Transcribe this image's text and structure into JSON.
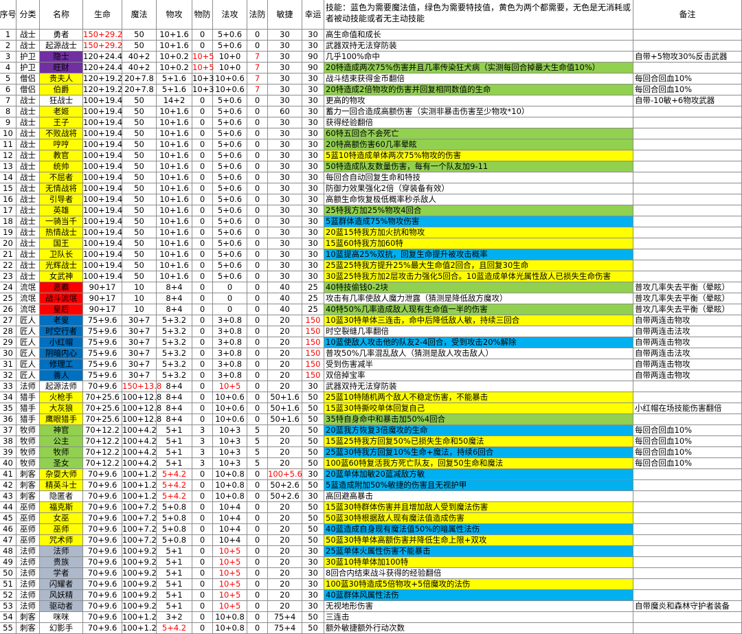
{
  "header": {
    "columns": [
      "序号",
      "分类",
      "名称",
      "生命",
      "魔法",
      "物攻",
      "物防",
      "法攻",
      "法防",
      "敏捷",
      "幸运",
      "技能：蓝色为需要魔法值，绿色为需要特技值，黄色为两个都需要，无色是无消耗或者被动技能或者无主动技能",
      "备注"
    ]
  },
  "table": {
    "rows": [
      {
        "cells": [
          "1",
          "战士",
          "勇者",
          "150+29.2",
          "50",
          "10+1.6",
          "0",
          "5+0.6",
          "0",
          "30",
          "30"
        ],
        "skill": "高生命值和成长",
        "red": [
          3
        ]
      },
      {
        "cells": [
          "2",
          "战士",
          "起源战士",
          "150+29.2",
          "50",
          "10+1.6",
          "0",
          "5+0.6",
          "0",
          "30",
          "30"
        ],
        "skill": "武器双持无法穿防装",
        "red": [
          3
        ]
      },
      {
        "cells": [
          "3",
          "护卫",
          "隐士",
          "120+24.4",
          "40+2",
          "10+0.2",
          "10+5",
          "10+0",
          "7",
          "30",
          "90"
        ],
        "skill": "几乎100%命中",
        "note": "自带+5物攻30%反击武器",
        "name_color": "#7030a0",
        "red": [
          6,
          8
        ]
      },
      {
        "cells": [
          "4",
          "护卫",
          "旺财",
          "120+24.4",
          "40+2",
          "10+0.2",
          "10+5",
          "10+0",
          "7",
          "30",
          "90"
        ],
        "skill": "20特造成两次75%伤害并且几率传染狂犬病（实测每回合掉最大生命值10%）",
        "name_color": "#7030a0",
        "skill_color": "#92d050",
        "red": [
          6,
          8
        ]
      },
      {
        "cells": [
          "5",
          "僧侣",
          "贵夫人",
          "120+19.2",
          "20+7.8",
          "5+1.6",
          "10+3",
          "10+0.6",
          "7",
          "30",
          "30"
        ],
        "skill": "战斗结束获得金币翻倍",
        "note": "每回合回血10%",
        "name_color": "#ffff00",
        "red": [
          8
        ]
      },
      {
        "cells": [
          "6",
          "僧侣",
          "伯爵",
          "120+19.2",
          "20+7.8",
          "5+1.6",
          "10+3",
          "10+0.6",
          "7",
          "30",
          "30"
        ],
        "skill": "20特造成2倍物攻的伤害并回复相同数值的生命",
        "note": "每回合回血10%",
        "name_color": "#ffff00",
        "skill_color": "#92d050",
        "red": [
          8
        ]
      },
      {
        "cells": [
          "7",
          "战士",
          "狂战士",
          "100+19.4",
          "50",
          "14+2",
          "0",
          "5+0.6",
          "0",
          "30",
          "30"
        ],
        "skill": "更高的物攻",
        "note": "自带-10敏+6物攻武器"
      },
      {
        "cells": [
          "8",
          "战士",
          "老姬",
          "100+19.4",
          "50",
          "10+1.6",
          "0",
          "5+0.6",
          "0",
          "60",
          "30"
        ],
        "skill": "蓄力一回合造成高额伤害（实测非暴击伤害至少物攻*10）",
        "name_color": "#ffff00"
      },
      {
        "cells": [
          "9",
          "战士",
          "王子",
          "100+19.4",
          "50",
          "10+1.6",
          "0",
          "5+0.6",
          "0",
          "30",
          "30"
        ],
        "skill": "获得经验翻倍",
        "name_color": "#ffff00"
      },
      {
        "cells": [
          "10",
          "战士",
          "不败战将",
          "100+19.4",
          "50",
          "10+1.6",
          "0",
          "5+0.6",
          "0",
          "30",
          "30"
        ],
        "skill": "60特五回合不会死亡",
        "name_color": "#ffff00",
        "skill_color": "#92d050"
      },
      {
        "cells": [
          "11",
          "战士",
          "哼哼",
          "100+19.4",
          "50",
          "10+1.6",
          "0",
          "5+0.6",
          "0",
          "30",
          "30"
        ],
        "skill": "20特高额伤害60几率晕眩",
        "name_color": "#ffff00",
        "skill_color": "#92d050"
      },
      {
        "cells": [
          "12",
          "战士",
          "教官",
          "100+19.4",
          "50",
          "10+1.6",
          "0",
          "5+0.6",
          "0",
          "30",
          "30"
        ],
        "skill": "5蓝10特造成单体两次75%物攻的伤害",
        "name_color": "#ffff00",
        "skill_color": "#ffff00"
      },
      {
        "cells": [
          "13",
          "战士",
          "统帅",
          "100+19.4",
          "50",
          "10+1.6",
          "0",
          "5+0.6",
          "0",
          "30",
          "30"
        ],
        "skill": "50特造成队友数量伤害，每有一个队友加9-11",
        "name_color": "#ffff00",
        "skill_color": "#92d050"
      },
      {
        "cells": [
          "14",
          "战士",
          "不屈者",
          "100+19.4",
          "50",
          "10+1.6",
          "0",
          "5+0.6",
          "0",
          "30",
          "30"
        ],
        "skill": "每回合自动回复生命和特技",
        "name_color": "#ffff00"
      },
      {
        "cells": [
          "15",
          "战士",
          "无情战将",
          "100+19.4",
          "50",
          "10+1.6",
          "0",
          "5+0.6",
          "0",
          "30",
          "30"
        ],
        "skill": "防御力效果强化2倍（穿装备有效）",
        "name_color": "#ffff00"
      },
      {
        "cells": [
          "16",
          "战士",
          "引导者",
          "100+19.4",
          "50",
          "10+1.6",
          "0",
          "5+0.6",
          "0",
          "30",
          "30"
        ],
        "skill": "高额生命恢复极低概率秒杀敌人",
        "name_color": "#ffff00"
      },
      {
        "cells": [
          "17",
          "战士",
          "英雄",
          "100+19.4",
          "50",
          "10+1.6",
          "0",
          "5+0.6",
          "0",
          "30",
          "30"
        ],
        "skill": "25特我方加25%物攻4回合",
        "name_color": "#ffff00",
        "skill_color": "#92d050"
      },
      {
        "cells": [
          "18",
          "战士",
          "一骑当千",
          "100+19.4",
          "50",
          "10+1.6",
          "0",
          "5+0.6",
          "0",
          "30",
          "30"
        ],
        "skill": "5蓝群体造成75%物攻伤害",
        "name_color": "#ffff00",
        "skill_color": "#00b0f0"
      },
      {
        "cells": [
          "19",
          "战士",
          "热情战士",
          "100+19.4",
          "50",
          "10+1.6",
          "0",
          "5+0.6",
          "0",
          "30",
          "30"
        ],
        "skill": "20蓝15特我方加火抗和物攻",
        "name_color": "#ffff00",
        "skill_color": "#ffff00"
      },
      {
        "cells": [
          "20",
          "战士",
          "国王",
          "100+19.4",
          "50",
          "10+1.6",
          "0",
          "5+0.6",
          "0",
          "30",
          "30"
        ],
        "skill": "15蓝60特我方加60特",
        "name_color": "#ffff00",
        "skill_color": "#ffff00"
      },
      {
        "cells": [
          "21",
          "战士",
          "卫队长",
          "100+19.4",
          "50",
          "10+1.6",
          "0",
          "5+0.6",
          "0",
          "30",
          "30"
        ],
        "skill": "10蓝提高25%双抗，回复生命提升被攻击概率",
        "name_color": "#ffff00",
        "skill_color": "#00b0f0"
      },
      {
        "cells": [
          "22",
          "战士",
          "光辉战士",
          "100+19.4",
          "50",
          "10+1.6",
          "0",
          "5+0.6",
          "0",
          "30",
          "30"
        ],
        "skill": "25蓝25特我方提升25%最大生命值2回合，且回复30生命",
        "name_color": "#ffff00",
        "skill_color": "#ffff00"
      },
      {
        "cells": [
          "23",
          "战士",
          "女武神",
          "100+19.4",
          "50",
          "10+1.6",
          "0",
          "5+0.6",
          "0",
          "30",
          "30"
        ],
        "skill": "30蓝25特我方加2层攻击力强化5回合。10蓝造成单体光属性敌人已损失生命伤害",
        "name_color": "#ffff00",
        "skill_color": "#ffff00"
      },
      {
        "cells": [
          "24",
          "流氓",
          "恶霸",
          "90+17",
          "10",
          "8+4",
          "0",
          "0",
          "0",
          "40",
          "25"
        ],
        "skill": "40特技偷钱0-2块",
        "note": "普攻几率失去平衡（晕眩）",
        "name_color": "#ff0000",
        "skill_color": "#92d050"
      },
      {
        "cells": [
          "25",
          "流氓",
          "战斗流氓",
          "90+17",
          "10",
          "8+4",
          "0",
          "0",
          "0",
          "40",
          "25"
        ],
        "skill": "攻击有几率使敌人魔力泄露（猜测是降低敌方魔攻）",
        "note": "普攻几率失去平衡（晕眩）",
        "name_color": "#ff0000"
      },
      {
        "cells": [
          "26",
          "流氓",
          "皇后",
          "90+17",
          "10",
          "8+4",
          "0",
          "0",
          "0",
          "40",
          "25"
        ],
        "skill": "40特50%几率造成敌人现有生命值一半的伤害",
        "note": "普攻几率失去平衡（晕眩）",
        "name_color": "#ff0000",
        "skill_color": "#92d050"
      },
      {
        "cells": [
          "27",
          "匠人",
          "老叟",
          "75+9.6",
          "30+7",
          "5+3.2",
          "0",
          "3+0.8",
          "0",
          "20",
          "150"
        ],
        "skill": "10蓝30特单体三连击，命中后降低敌人敏，持续三回合",
        "note": "自带两连击物攻",
        "name_color": "#0070c0",
        "skill_color": "#ffff00",
        "red": [
          10
        ]
      },
      {
        "cells": [
          "28",
          "匠人",
          "时空行者",
          "75+9.6",
          "30+7",
          "5+3.2",
          "0",
          "3+0.8",
          "0",
          "20",
          "150"
        ],
        "skill": "时空裂缝几率翻倍",
        "note": "自带两连击法攻",
        "name_color": "#0070c0",
        "red": [
          10
        ]
      },
      {
        "cells": [
          "29",
          "匠人",
          "小红帽",
          "75+9.6",
          "30+7",
          "5+3.2",
          "0",
          "3+0.8",
          "0",
          "20",
          "150"
        ],
        "skill": "10蓝使敌人攻击他的队友2-4回合，受到攻击20%解除",
        "note": "自带两连击物攻",
        "name_color": "#0070c0",
        "skill_color": "#00b0f0",
        "red": [
          10
        ]
      },
      {
        "cells": [
          "30",
          "匠人",
          "阴暗内心",
          "75+9.6",
          "30+7",
          "5+3.2",
          "0",
          "3+0.8",
          "0",
          "20",
          "150"
        ],
        "skill": "普攻50%几率混乱敌人（猜测是敌人攻击敌人）",
        "note": "自带两连击法攻",
        "name_color": "#0070c0",
        "red": [
          10
        ]
      },
      {
        "cells": [
          "31",
          "匠人",
          "修理工",
          "75+9.6",
          "30+7",
          "5+3.2",
          "0",
          "3+0.8",
          "0",
          "20",
          "150"
        ],
        "skill": "受到伤害减半",
        "note": "自带两连击物攻",
        "name_color": "#0070c0",
        "red": [
          10
        ]
      },
      {
        "cells": [
          "32",
          "匠人",
          "善人",
          "75+9.6",
          "30+7",
          "5+3.2",
          "0",
          "3+0.8",
          "0",
          "20",
          "150"
        ],
        "skill": "双倍掉宝率",
        "note": "自带两连击物攻",
        "name_color": "#0070c0",
        "red": [
          10
        ]
      },
      {
        "cells": [
          "33",
          "法师",
          "起源法师",
          "70+9.6",
          "150+13.8",
          "8+4",
          "0",
          "10+5",
          "0",
          "20",
          "30"
        ],
        "skill": "武器双持无法穿防装",
        "red": [
          4,
          7
        ]
      },
      {
        "cells": [
          "34",
          "猎手",
          "火枪手",
          "70+25.6",
          "100+12.8",
          "8+4",
          "0",
          "10+0.6",
          "0",
          "50+1.6",
          "50"
        ],
        "skill": "25蓝10特随机两个敌人不稳定伤害，不能暴击",
        "name_color": "#ffff00",
        "skill_color": "#ffff00"
      },
      {
        "cells": [
          "35",
          "猎手",
          "大灰狼",
          "70+25.6",
          "100+12.8",
          "8+4",
          "0",
          "10+0.6",
          "0",
          "50+1.6",
          "50"
        ],
        "skill": "15蓝30特撕咬单体回复自己",
        "note": "小红帽在场技能伤害翻倍",
        "name_color": "#ffff00",
        "skill_color": "#ffff00"
      },
      {
        "cells": [
          "36",
          "猎手",
          "鹰眼猎手",
          "70+25.6",
          "100+12.8",
          "8+4",
          "0",
          "10+0.6",
          "0",
          "50+1.6",
          "50"
        ],
        "skill": "35特自身命中和暴击加50%4回合",
        "name_color": "#ffff00",
        "skill_color": "#92d050"
      },
      {
        "cells": [
          "37",
          "牧师",
          "神官",
          "70+12.2",
          "100+4.2",
          "5+1",
          "3",
          "10+3",
          "5",
          "20",
          "50"
        ],
        "skill": "20蓝我方恢复3倍魔攻的生命",
        "note": "每回合回血10%",
        "name_color": "#92d050",
        "skill_color": "#00b0f0"
      },
      {
        "cells": [
          "38",
          "牧师",
          "公主",
          "70+12.2",
          "100+4.2",
          "5+1",
          "3",
          "10+3",
          "5",
          "20",
          "50"
        ],
        "skill": "15蓝25特我方回复50%已损失生命和50魔法",
        "note": "每回合回血10%",
        "name_color": "#92d050",
        "skill_color": "#ffff00"
      },
      {
        "cells": [
          "39",
          "牧师",
          "牧师",
          "70+12.2",
          "100+4.2",
          "5+1",
          "3",
          "10+3",
          "5",
          "20",
          "50"
        ],
        "skill": "25蓝30特我方回复10%生命+魔法，持续6回合",
        "note": "每回合回血10%",
        "name_color": "#92d050",
        "skill_color": "#00b0f0"
      },
      {
        "cells": [
          "40",
          "牧师",
          "圣女",
          "70+12.2",
          "100+4.2",
          "5+1",
          "3",
          "10+3",
          "5",
          "20",
          "50"
        ],
        "skill": "100蓝60特复活我方死亡队友，回复50生命和魔法",
        "note": "每回合回血10%",
        "name_color": "#92d050",
        "skill_color": "#ffff00"
      },
      {
        "cells": [
          "41",
          "刺客",
          "杂耍大师",
          "70+9.6",
          "100+1.2",
          "5+4.2",
          "0",
          "10+0.8",
          "0",
          "100+5.6",
          "30"
        ],
        "skill": "20蓝单体加敏20蓝减敌方敏",
        "name_color": "#ffff00",
        "skill_color": "#00b0f0",
        "red": [
          5,
          9
        ]
      },
      {
        "cells": [
          "42",
          "刺客",
          "精英斗士",
          "70+9.6",
          "100+1.2",
          "5+4.2",
          "0",
          "10+0.8",
          "0",
          "50+2.6",
          "50"
        ],
        "skill": "5蓝造成附加50%敏捷的伤害且无视护甲",
        "name_color": "#ffff00",
        "skill_color": "#00b0f0",
        "red": [
          5
        ]
      },
      {
        "cells": [
          "43",
          "刺客",
          "隐匿者",
          "70+9.6",
          "100+1.2",
          "5+4.2",
          "0",
          "10+0.8",
          "0",
          "50+2.6",
          "30"
        ],
        "skill": "高回避高暴击",
        "red": [
          5
        ]
      },
      {
        "cells": [
          "44",
          "巫师",
          "福克斯",
          "70+9.6",
          "100+7.2",
          "5+0.8",
          "0",
          "10+4",
          "0",
          "20",
          "50"
        ],
        "skill": "15蓝30特群体伤害并且增加敌人受到魔法伤害",
        "name_color": "#ffff00",
        "skill_color": "#ffff00"
      },
      {
        "cells": [
          "45",
          "巫师",
          "女巫",
          "70+9.6",
          "100+7.2",
          "5+0.8",
          "0",
          "10+4",
          "0",
          "20",
          "50"
        ],
        "skill": "50蓝30特根据敌人现有魔法值造成伤害",
        "name_color": "#ffff00",
        "skill_color": "#ffff00"
      },
      {
        "cells": [
          "46",
          "巫师",
          "巫师",
          "70+9.6",
          "100+7.2",
          "5+0.8",
          "0",
          "10+4",
          "0",
          "20",
          "50"
        ],
        "skill": "40蓝造成自身现有魔法值50%的暗属性法伤",
        "name_color": "#ffff00",
        "skill_color": "#00b0f0"
      },
      {
        "cells": [
          "47",
          "巫师",
          "咒术师",
          "70+9.6",
          "100+7.2",
          "5+0.8",
          "0",
          "10+4",
          "0",
          "20",
          "50"
        ],
        "skill": "50蓝30特单体高额伤害并降低生命上限+双攻",
        "name_color": "#ffff00",
        "skill_color": "#ffff00"
      },
      {
        "cells": [
          "48",
          "法师",
          "法师",
          "70+9.6",
          "100+9.2",
          "5+1",
          "0",
          "10+5",
          "0",
          "20",
          "30"
        ],
        "skill": "25蓝单体火属性伤害不能暴击",
        "name_color": "#adb9ca",
        "skill_color": "#00b0f0",
        "red": [
          7
        ]
      },
      {
        "cells": [
          "49",
          "法师",
          "贵族",
          "70+9.6",
          "100+9.2",
          "5+1",
          "0",
          "10+5",
          "0",
          "20",
          "30"
        ],
        "skill": "30蓝10特单体加100特",
        "name_color": "#adb9ca",
        "skill_color": "#ffff00",
        "red": [
          7
        ]
      },
      {
        "cells": [
          "50",
          "法师",
          "学者",
          "70+9.6",
          "100+9.2",
          "5+1",
          "0",
          "10+5",
          "0",
          "20",
          "30"
        ],
        "skill": "8回合内结束战斗获得的经验翻倍",
        "name_color": "#adb9ca",
        "red": [
          7
        ]
      },
      {
        "cells": [
          "51",
          "法师",
          "闪耀者",
          "70+9.6",
          "100+9.2",
          "5+1",
          "0",
          "10+5",
          "0",
          "20",
          "30"
        ],
        "skill": "100蓝30特造成5倍物攻+5倍魔攻的法伤",
        "name_color": "#adb9ca",
        "skill_color": "#ffff00",
        "red": [
          7
        ]
      },
      {
        "cells": [
          "52",
          "法师",
          "风妖精",
          "70+9.6",
          "100+9.2",
          "5+1",
          "0",
          "10+5",
          "0",
          "20",
          "30"
        ],
        "skill": "40蓝群体风属性法伤",
        "name_color": "#adb9ca",
        "skill_color": "#00b0f0",
        "red": [
          7
        ]
      },
      {
        "cells": [
          "53",
          "法师",
          "驱动者",
          "70+9.6",
          "100+9.2",
          "5+1",
          "0",
          "10+5",
          "0",
          "20",
          "30"
        ],
        "skill": "无视地形伤害",
        "note": "自带魔炎和森林守护者装备",
        "name_color": "#adb9ca",
        "red": [
          7
        ]
      },
      {
        "cells": [
          "54",
          "刺客",
          "咪咪",
          "70+9.6",
          "100+1.2",
          "3+2",
          "0",
          "10+0.8",
          "0",
          "75+4",
          "50"
        ],
        "skill": "三连击"
      },
      {
        "cells": [
          "55",
          "刺客",
          "幻影手",
          "70+9.6",
          "100+1.2",
          "5+4.2",
          "0",
          "10+0.8",
          "0",
          "75+4",
          "50"
        ],
        "skill": "额外敏捷额外行动次数",
        "red": [
          5
        ]
      }
    ]
  }
}
